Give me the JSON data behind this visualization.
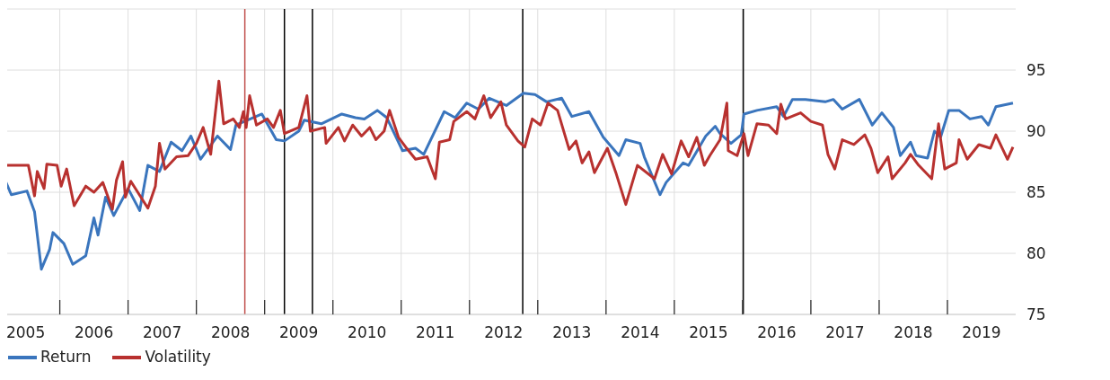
{
  "chart_data": {
    "type": "line",
    "xlim": [
      2005.19,
      2020
    ],
    "ylim": [
      75,
      100
    ],
    "yticks": [
      75,
      80,
      85,
      90,
      95
    ],
    "xticks": [
      {
        "value": 2005.5,
        "label": "2005"
      },
      {
        "value": 2006,
        "label": null
      },
      {
        "value": 2006.5,
        "label": "2006"
      },
      {
        "value": 2007,
        "label": null
      },
      {
        "value": 2007.5,
        "label": "2007"
      },
      {
        "value": 2008,
        "label": null
      },
      {
        "value": 2008.5,
        "label": "2008"
      },
      {
        "value": 2009,
        "label": null
      },
      {
        "value": 2009.5,
        "label": "2009"
      },
      {
        "value": 2010,
        "label": null
      },
      {
        "value": 2010.5,
        "label": "2010"
      },
      {
        "value": 2011,
        "label": null
      },
      {
        "value": 2011.5,
        "label": "2011"
      },
      {
        "value": 2012,
        "label": null
      },
      {
        "value": 2012.5,
        "label": "2012"
      },
      {
        "value": 2013,
        "label": null
      },
      {
        "value": 2013.5,
        "label": "2013"
      },
      {
        "value": 2014,
        "label": null
      },
      {
        "value": 2014.5,
        "label": "2014"
      },
      {
        "value": 2015,
        "label": null
      },
      {
        "value": 2015.5,
        "label": "2015"
      },
      {
        "value": 2016,
        "label": null
      },
      {
        "value": 2016.5,
        "label": "2016"
      },
      {
        "value": 2017,
        "label": null
      },
      {
        "value": 2017.5,
        "label": "2017"
      },
      {
        "value": 2018,
        "label": null
      },
      {
        "value": 2018.5,
        "label": "2018"
      },
      {
        "value": 2019,
        "label": null
      },
      {
        "value": 2019.5,
        "label": "2019"
      }
    ],
    "grid": true,
    "legend": "bottom left",
    "marker": "none",
    "line_style": "solid",
    "ref_lines": [
      {
        "axis": "x",
        "value": 2008.71,
        "color": "#c0504d"
      },
      {
        "axis": "x",
        "value": 2009.29,
        "color": "#000000"
      },
      {
        "axis": "x",
        "value": 2009.7,
        "color": "#000000"
      },
      {
        "axis": "x",
        "value": 2012.78,
        "color": "#000000"
      },
      {
        "axis": "x",
        "value": 2016.01,
        "color": "#000000"
      }
    ],
    "series": [
      {
        "name": "Return",
        "color": "#3a75bd",
        "x": [
          2005.19,
          2005.29,
          2005.52,
          2005.63,
          2005.73,
          2005.85,
          2005.9,
          2006.06,
          2006.19,
          2006.38,
          2006.5,
          2006.56,
          2006.67,
          2006.79,
          2007.0,
          2007.17,
          2007.29,
          2007.46,
          2007.63,
          2007.79,
          2007.92,
          2008.06,
          2008.31,
          2008.5,
          2008.58,
          2008.79,
          2008.96,
          2009.17,
          2009.29,
          2009.5,
          2009.58,
          2009.83,
          2010.13,
          2010.33,
          2010.46,
          2010.65,
          2010.79,
          2011.02,
          2011.21,
          2011.33,
          2011.63,
          2011.79,
          2011.96,
          2012.13,
          2012.29,
          2012.54,
          2012.79,
          2012.96,
          2013.13,
          2013.35,
          2013.5,
          2013.75,
          2013.96,
          2014.19,
          2014.29,
          2014.5,
          2014.56,
          2014.79,
          2014.88,
          2015.13,
          2015.21,
          2015.46,
          2015.6,
          2015.67,
          2015.83,
          2015.98,
          2016.02,
          2016.21,
          2016.5,
          2016.6,
          2016.73,
          2016.92,
          2017.21,
          2017.33,
          2017.46,
          2017.71,
          2017.9,
          2018.04,
          2018.21,
          2018.31,
          2018.46,
          2018.54,
          2018.71,
          2018.81,
          2018.9,
          2019.02,
          2019.17,
          2019.33,
          2019.5,
          2019.6,
          2019.71,
          2019.96
        ],
        "values": [
          86.1,
          84.8,
          85.1,
          83.4,
          78.7,
          80.3,
          81.7,
          80.8,
          79.1,
          79.8,
          82.9,
          81.5,
          84.6,
          83.1,
          85.3,
          83.5,
          87.2,
          86.7,
          89.1,
          88.4,
          89.6,
          87.7,
          89.6,
          88.5,
          90.5,
          91.0,
          91.4,
          89.3,
          89.2,
          90.0,
          90.9,
          90.6,
          91.4,
          91.1,
          91.0,
          91.7,
          91.1,
          88.4,
          88.6,
          88.1,
          91.6,
          91.1,
          92.3,
          91.8,
          92.7,
          92.1,
          93.1,
          93.0,
          92.4,
          92.7,
          91.2,
          91.6,
          89.5,
          88.0,
          89.3,
          89.0,
          87.9,
          84.8,
          85.8,
          87.4,
          87.2,
          89.6,
          90.4,
          89.8,
          89.0,
          89.7,
          91.4,
          91.7,
          92.0,
          91.2,
          92.6,
          92.6,
          92.4,
          92.6,
          91.8,
          92.6,
          90.5,
          91.5,
          90.3,
          88.0,
          89.1,
          88.0,
          87.8,
          90.0,
          89.5,
          91.7,
          91.7,
          91.0,
          91.2,
          90.5,
          92.0,
          92.3
        ]
      },
      {
        "name": "Volatility",
        "color": "#b8312f",
        "x": [
          2005.19,
          2005.54,
          2005.63,
          2005.67,
          2005.77,
          2005.81,
          2005.96,
          2006.02,
          2006.1,
          2006.21,
          2006.38,
          2006.5,
          2006.63,
          2006.77,
          2006.83,
          2006.92,
          2006.96,
          2007.04,
          2007.29,
          2007.4,
          2007.46,
          2007.54,
          2007.71,
          2007.88,
          2008.0,
          2008.1,
          2008.21,
          2008.33,
          2008.4,
          2008.54,
          2008.63,
          2008.69,
          2008.73,
          2008.78,
          2008.88,
          2009.04,
          2009.13,
          2009.23,
          2009.29,
          2009.5,
          2009.62,
          2009.67,
          2009.88,
          2009.9,
          2010.08,
          2010.17,
          2010.29,
          2010.42,
          2010.54,
          2010.63,
          2010.75,
          2010.83,
          2010.96,
          2011.08,
          2011.21,
          2011.38,
          2011.5,
          2011.56,
          2011.71,
          2011.77,
          2011.96,
          2012.08,
          2012.21,
          2012.31,
          2012.46,
          2012.54,
          2012.71,
          2012.81,
          2012.92,
          2013.04,
          2013.15,
          2013.29,
          2013.46,
          2013.56,
          2013.65,
          2013.75,
          2013.83,
          2014.02,
          2014.15,
          2014.29,
          2014.46,
          2014.71,
          2014.83,
          2014.96,
          2015.1,
          2015.21,
          2015.33,
          2015.44,
          2015.52,
          2015.67,
          2015.77,
          2015.79,
          2015.92,
          2016.02,
          2016.08,
          2016.21,
          2016.38,
          2016.5,
          2016.56,
          2016.63,
          2016.85,
          2017.0,
          2017.17,
          2017.25,
          2017.35,
          2017.46,
          2017.63,
          2017.79,
          2017.88,
          2017.98,
          2018.13,
          2018.19,
          2018.38,
          2018.46,
          2018.58,
          2018.77,
          2018.87,
          2018.96,
          2019.13,
          2019.17,
          2019.29,
          2019.46,
          2019.63,
          2019.71,
          2019.88,
          2019.96
        ],
        "values": [
          87.2,
          87.2,
          84.7,
          86.7,
          85.3,
          87.3,
          87.2,
          85.5,
          86.9,
          83.9,
          85.5,
          85.0,
          85.8,
          83.6,
          86.0,
          87.5,
          84.6,
          85.9,
          83.7,
          85.5,
          89.0,
          86.9,
          87.9,
          88.0,
          89.0,
          90.3,
          88.1,
          94.1,
          90.6,
          91.0,
          90.3,
          91.6,
          90.3,
          92.9,
          90.5,
          91.0,
          90.3,
          91.7,
          89.8,
          90.3,
          92.9,
          90.0,
          90.3,
          89.0,
          90.3,
          89.2,
          90.5,
          89.6,
          90.3,
          89.3,
          90.0,
          91.7,
          89.5,
          88.6,
          87.7,
          87.9,
          86.1,
          89.1,
          89.3,
          90.8,
          91.6,
          91.0,
          92.9,
          91.1,
          92.4,
          90.5,
          89.2,
          88.7,
          91.0,
          90.5,
          92.3,
          91.7,
          88.5,
          89.2,
          87.4,
          88.3,
          86.6,
          88.6,
          86.5,
          84.0,
          87.2,
          86.1,
          88.1,
          86.5,
          89.2,
          87.9,
          89.5,
          87.2,
          88.0,
          89.3,
          92.3,
          88.4,
          88.0,
          89.8,
          88.0,
          90.6,
          90.5,
          89.8,
          92.2,
          91.0,
          91.5,
          90.8,
          90.5,
          88.1,
          86.9,
          89.3,
          88.9,
          89.7,
          88.6,
          86.6,
          87.9,
          86.1,
          87.4,
          88.1,
          87.2,
          86.1,
          90.6,
          86.9,
          87.4,
          89.3,
          87.7,
          88.9,
          88.6,
          89.7,
          87.7,
          88.7
        ]
      }
    ]
  }
}
